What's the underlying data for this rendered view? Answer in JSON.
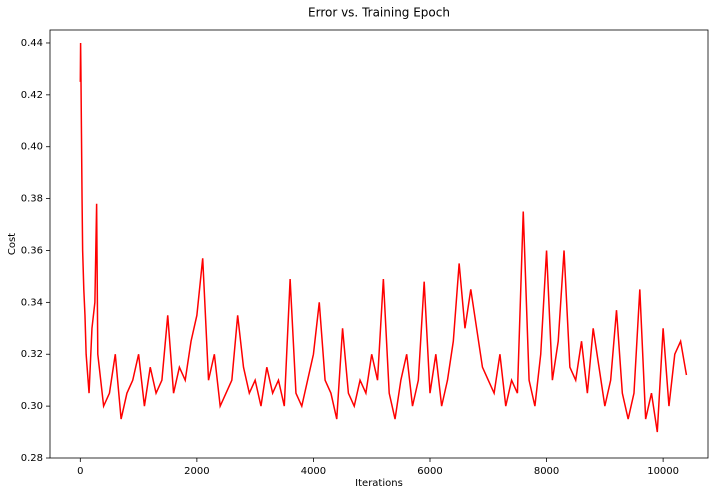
{
  "chart_data": {
    "type": "line",
    "title": "Error vs. Training Epoch",
    "x_label": "Iterations",
    "y_label": "Cost",
    "x": [
      0,
      5,
      10,
      20,
      30,
      40,
      60,
      80,
      100,
      150,
      200,
      250,
      280,
      300,
      350,
      400,
      500,
      600,
      700,
      800,
      900,
      1000,
      1100,
      1200,
      1300,
      1400,
      1500,
      1600,
      1700,
      1800,
      1900,
      2000,
      2100,
      2200,
      2300,
      2400,
      2500,
      2600,
      2700,
      2800,
      2900,
      3000,
      3100,
      3200,
      3300,
      3400,
      3500,
      3600,
      3700,
      3800,
      3900,
      4000,
      4100,
      4200,
      4300,
      4400,
      4500,
      4600,
      4700,
      4800,
      4900,
      5000,
      5100,
      5200,
      5300,
      5400,
      5500,
      5600,
      5700,
      5800,
      5900,
      6000,
      6100,
      6200,
      6300,
      6400,
      6500,
      6600,
      6700,
      6800,
      6900,
      7000,
      7100,
      7200,
      7300,
      7400,
      7500,
      7600,
      7700,
      7800,
      7900,
      8000,
      8100,
      8200,
      8300,
      8400,
      8500,
      8600,
      8700,
      8800,
      8900,
      9000,
      9100,
      9200,
      9300,
      9400,
      9500,
      9600,
      9700,
      9800,
      9900,
      10000,
      10100,
      10200,
      10300,
      10400
    ],
    "series": [
      {
        "name": "Cost",
        "color": "#ff0000",
        "values": [
          0.425,
          0.44,
          0.43,
          0.405,
          0.38,
          0.36,
          0.345,
          0.335,
          0.32,
          0.305,
          0.33,
          0.34,
          0.378,
          0.32,
          0.31,
          0.3,
          0.305,
          0.32,
          0.295,
          0.305,
          0.31,
          0.32,
          0.3,
          0.315,
          0.305,
          0.31,
          0.335,
          0.305,
          0.315,
          0.31,
          0.325,
          0.335,
          0.357,
          0.31,
          0.32,
          0.3,
          0.305,
          0.31,
          0.335,
          0.315,
          0.305,
          0.31,
          0.3,
          0.315,
          0.305,
          0.31,
          0.3,
          0.349,
          0.305,
          0.3,
          0.31,
          0.32,
          0.34,
          0.31,
          0.305,
          0.295,
          0.33,
          0.305,
          0.3,
          0.31,
          0.305,
          0.32,
          0.31,
          0.349,
          0.305,
          0.295,
          0.31,
          0.32,
          0.3,
          0.31,
          0.348,
          0.305,
          0.32,
          0.3,
          0.31,
          0.325,
          0.355,
          0.33,
          0.345,
          0.33,
          0.315,
          0.31,
          0.305,
          0.32,
          0.3,
          0.31,
          0.305,
          0.375,
          0.31,
          0.3,
          0.32,
          0.36,
          0.31,
          0.325,
          0.36,
          0.315,
          0.31,
          0.325,
          0.305,
          0.33,
          0.315,
          0.3,
          0.31,
          0.337,
          0.305,
          0.295,
          0.305,
          0.345,
          0.295,
          0.305,
          0.29,
          0.33,
          0.3,
          0.32,
          0.325,
          0.312
        ]
      }
    ],
    "xlim": [
      -520,
      10770
    ],
    "ylim": [
      0.28,
      0.445
    ],
    "xticks": [
      0,
      2000,
      4000,
      6000,
      8000,
      10000
    ],
    "yticks": [
      0.28,
      {
        "value": 0.3,
        "label": "0.30"
      },
      0.32,
      0.34,
      0.36,
      0.38,
      {
        "value": 0.4,
        "label": "0.40"
      },
      0.42,
      0.44
    ],
    "grid": false
  }
}
